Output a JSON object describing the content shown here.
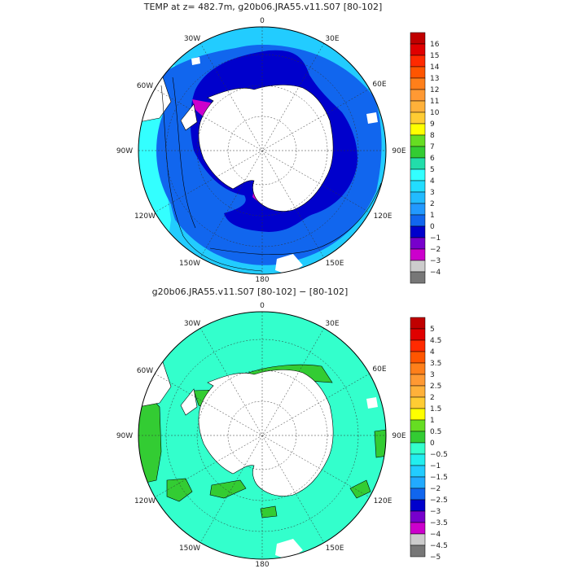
{
  "top_panel": {
    "title": "TEMP at z= 482.7m, g20b06.JRA55.v11.S07 [80-102]",
    "lon_labels": [
      "0",
      "30E",
      "60E",
      "90E",
      "120E",
      "150E",
      "180",
      "150W",
      "120W",
      "90W",
      "60W",
      "30W"
    ],
    "colorbar": {
      "labels": [
        "16",
        "15",
        "14",
        "13",
        "12",
        "11",
        "10",
        "9",
        "8",
        "7",
        "6",
        "5",
        "4",
        "3",
        "2",
        "1",
        "0",
        "−1",
        "−2",
        "−3",
        "−4"
      ],
      "colors": [
        "#c00000",
        "#e00000",
        "#ff2a00",
        "#ff5500",
        "#ff7f1a",
        "#ff9933",
        "#ffb13a",
        "#ffcc33",
        "#ffff00",
        "#66dd22",
        "#33cc33",
        "#22ddaa",
        "#33ffff",
        "#22ddff",
        "#22bbff",
        "#2299ff",
        "#1166ee",
        "#0000cc",
        "#7700cc",
        "#cc00cc",
        "#cccccc",
        "#777777"
      ]
    }
  },
  "bottom_panel": {
    "title": "g20b06.JRA55.v11.S07 [80-102] −  [80-102]",
    "lon_labels": [
      "0",
      "30E",
      "60E",
      "90E",
      "120E",
      "150E",
      "180",
      "150W",
      "120W",
      "90W",
      "60W",
      "30W"
    ],
    "colorbar": {
      "labels": [
        "5",
        "4.5",
        "4",
        "3.5",
        "3",
        "2.5",
        "2",
        "1.5",
        "1",
        "0.5",
        "0",
        "−0.5",
        "−1",
        "−1.5",
        "−2",
        "−2.5",
        "−3",
        "−3.5",
        "−4",
        "−4.5",
        "−5"
      ],
      "colors": [
        "#c00000",
        "#e00000",
        "#ff2a00",
        "#ff5500",
        "#ff7f1a",
        "#ff9933",
        "#ffb13a",
        "#ffcc33",
        "#ffff00",
        "#66dd22",
        "#33cc33",
        "#33ffcc",
        "#22eeee",
        "#22ccff",
        "#22aaff",
        "#1166ee",
        "#0000cc",
        "#7700cc",
        "#cc00cc",
        "#cccccc",
        "#777777"
      ]
    }
  },
  "colors": {
    "land": "#ffffff",
    "outline": "#000000",
    "grid": "#333333",
    "top_shelf": "#0000cc",
    "top_mid": "#1166ee",
    "top_outer": "#22ccff",
    "top_edge": "#33ffff",
    "top_cold": "#cc00cc",
    "diff_main": "#33ffcc",
    "diff_pos": "#33cc33"
  }
}
